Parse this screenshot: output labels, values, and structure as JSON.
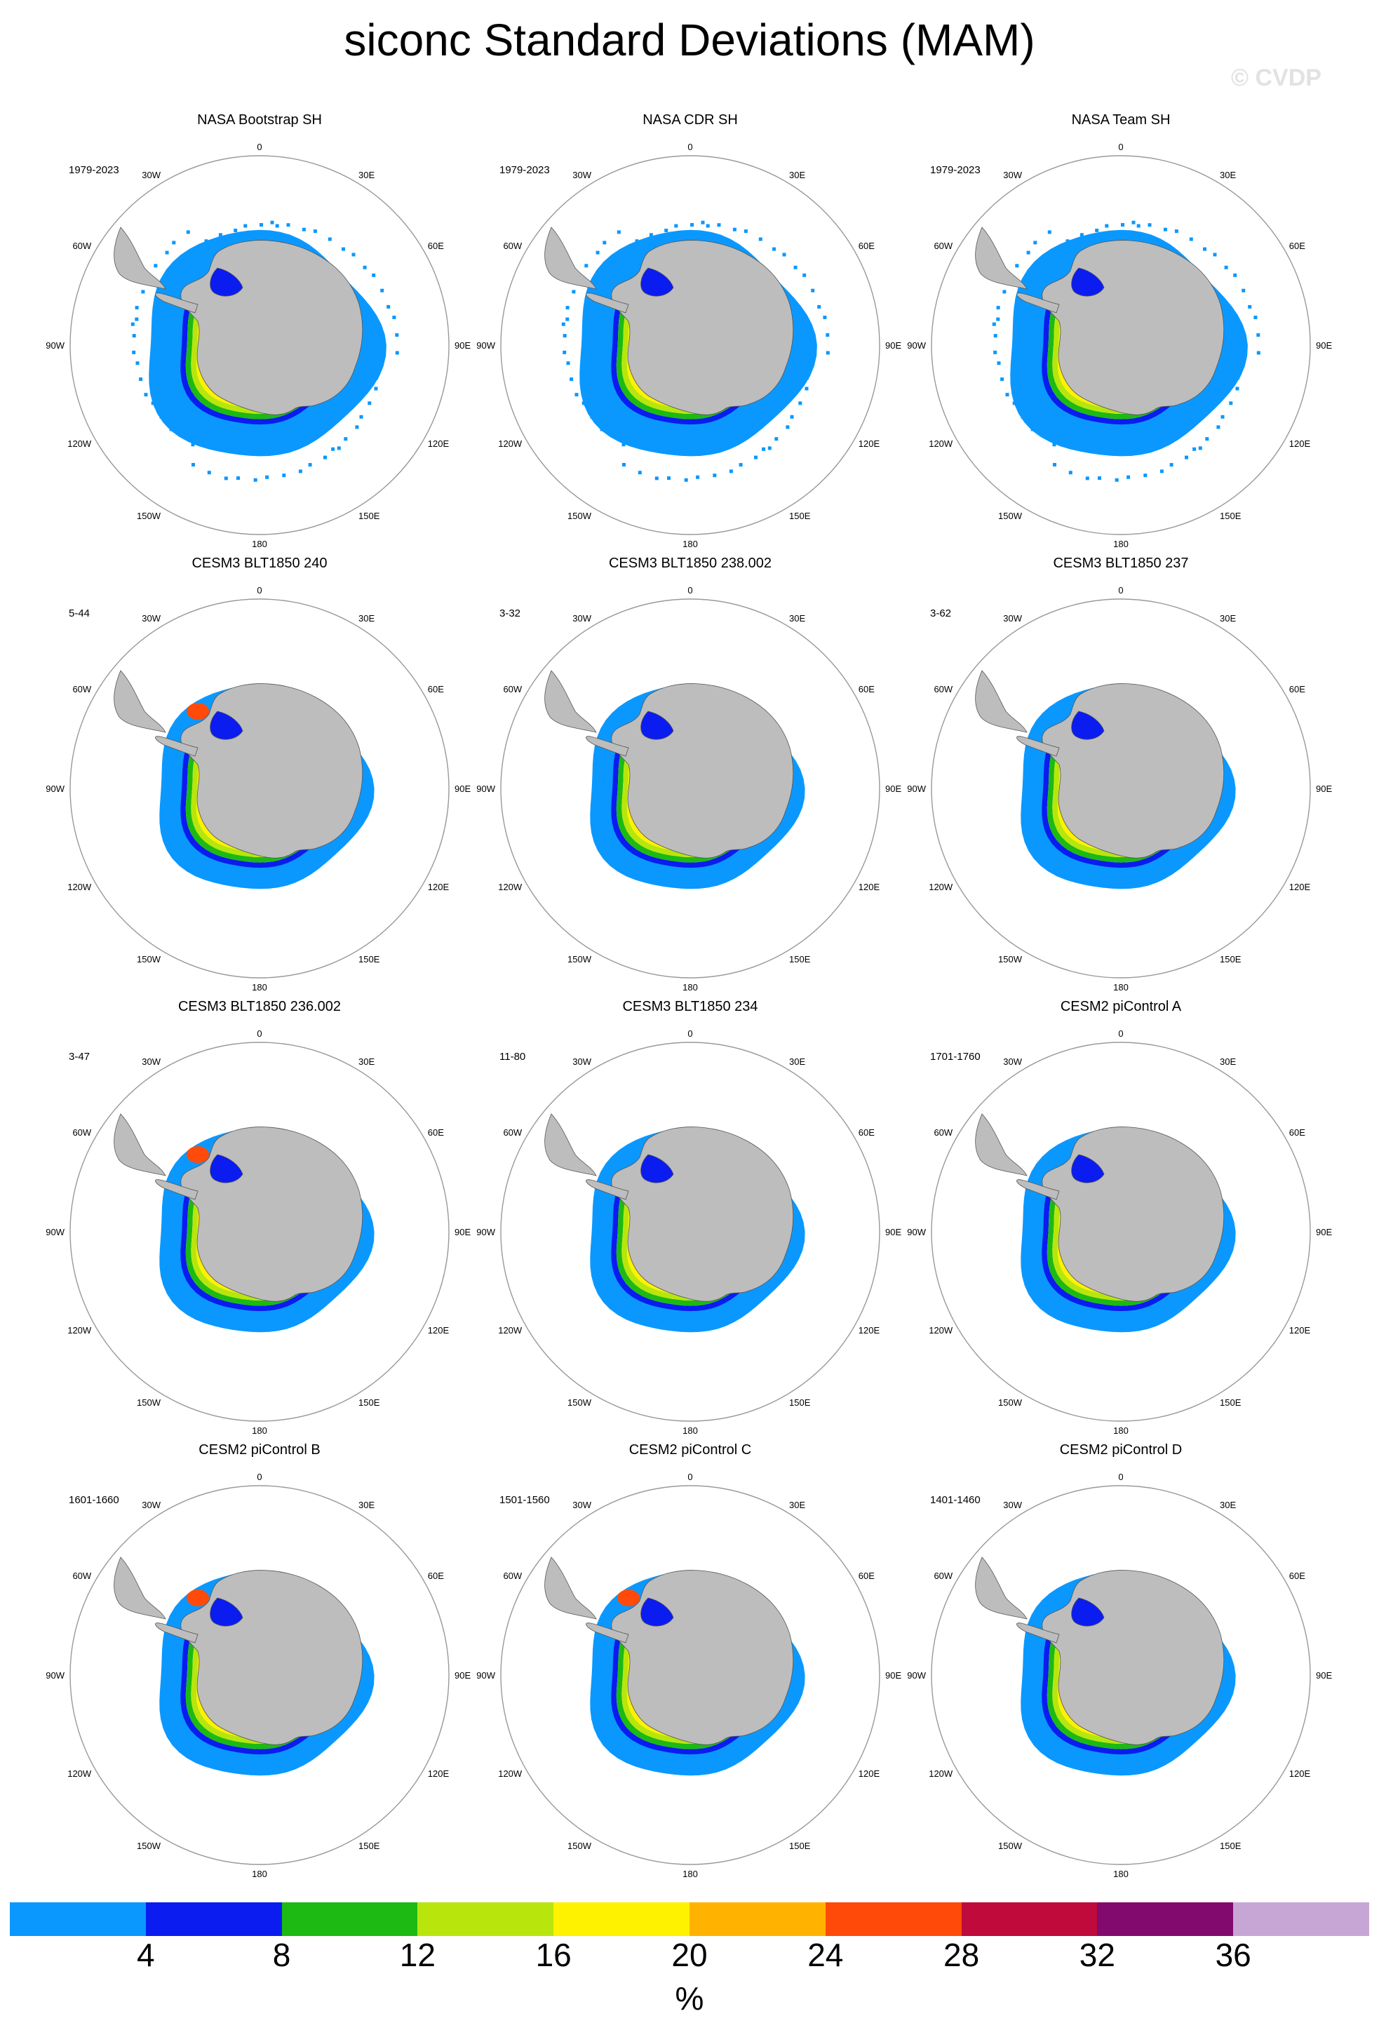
{
  "title": "siconc Standard Deviations (MAM)",
  "watermark": "© CVDP",
  "colors": {
    "land": "#bdbdbd",
    "grid_circle": "#999999"
  },
  "map_labels": {
    "top": "0",
    "bottom": "180",
    "left": "90W",
    "right": "90E",
    "upper_left_1": "30W",
    "upper_left_2": "60W",
    "upper_right_1": "30E",
    "upper_right_2": "60E",
    "lower_left_1": "120W",
    "lower_left_2": "150W",
    "lower_right_1": "120E",
    "lower_right_2": "150E"
  },
  "panels": [
    {
      "title": "NASA Bootstrap SH",
      "period": "1979-2023",
      "style": "obs"
    },
    {
      "title": "NASA CDR SH",
      "period": "1979-2023",
      "style": "obs"
    },
    {
      "title": "NASA Team SH",
      "period": "1979-2023",
      "style": "obs"
    },
    {
      "title": "CESM3 BLT1850 240",
      "period": "5-44",
      "style": "model"
    },
    {
      "title": "CESM3 BLT1850 238.002",
      "period": "3-32",
      "style": "model"
    },
    {
      "title": "CESM3 BLT1850 237",
      "period": "3-62",
      "style": "model"
    },
    {
      "title": "CESM3 BLT1850 236.002",
      "period": "3-47",
      "style": "model"
    },
    {
      "title": "CESM3 BLT1850 234",
      "period": "11-80",
      "style": "model"
    },
    {
      "title": "CESM2 piControl A",
      "period": "1701-1760",
      "style": "model"
    },
    {
      "title": "CESM2 piControl B",
      "period": "1601-1660",
      "style": "model"
    },
    {
      "title": "CESM2 piControl C",
      "period": "1501-1560",
      "style": "model"
    },
    {
      "title": "CESM2 piControl D",
      "period": "1401-1460",
      "style": "model"
    }
  ],
  "colorbar": {
    "colors": [
      "#0a98ff",
      "#0a1cf0",
      "#1cba12",
      "#b8e60c",
      "#fff200",
      "#ffb300",
      "#ff4a0a",
      "#bf0a3b",
      "#820a6e",
      "#c7a6d6"
    ],
    "ticks": [
      "4",
      "8",
      "12",
      "16",
      "20",
      "24",
      "28",
      "32",
      "36"
    ],
    "units": "%"
  }
}
